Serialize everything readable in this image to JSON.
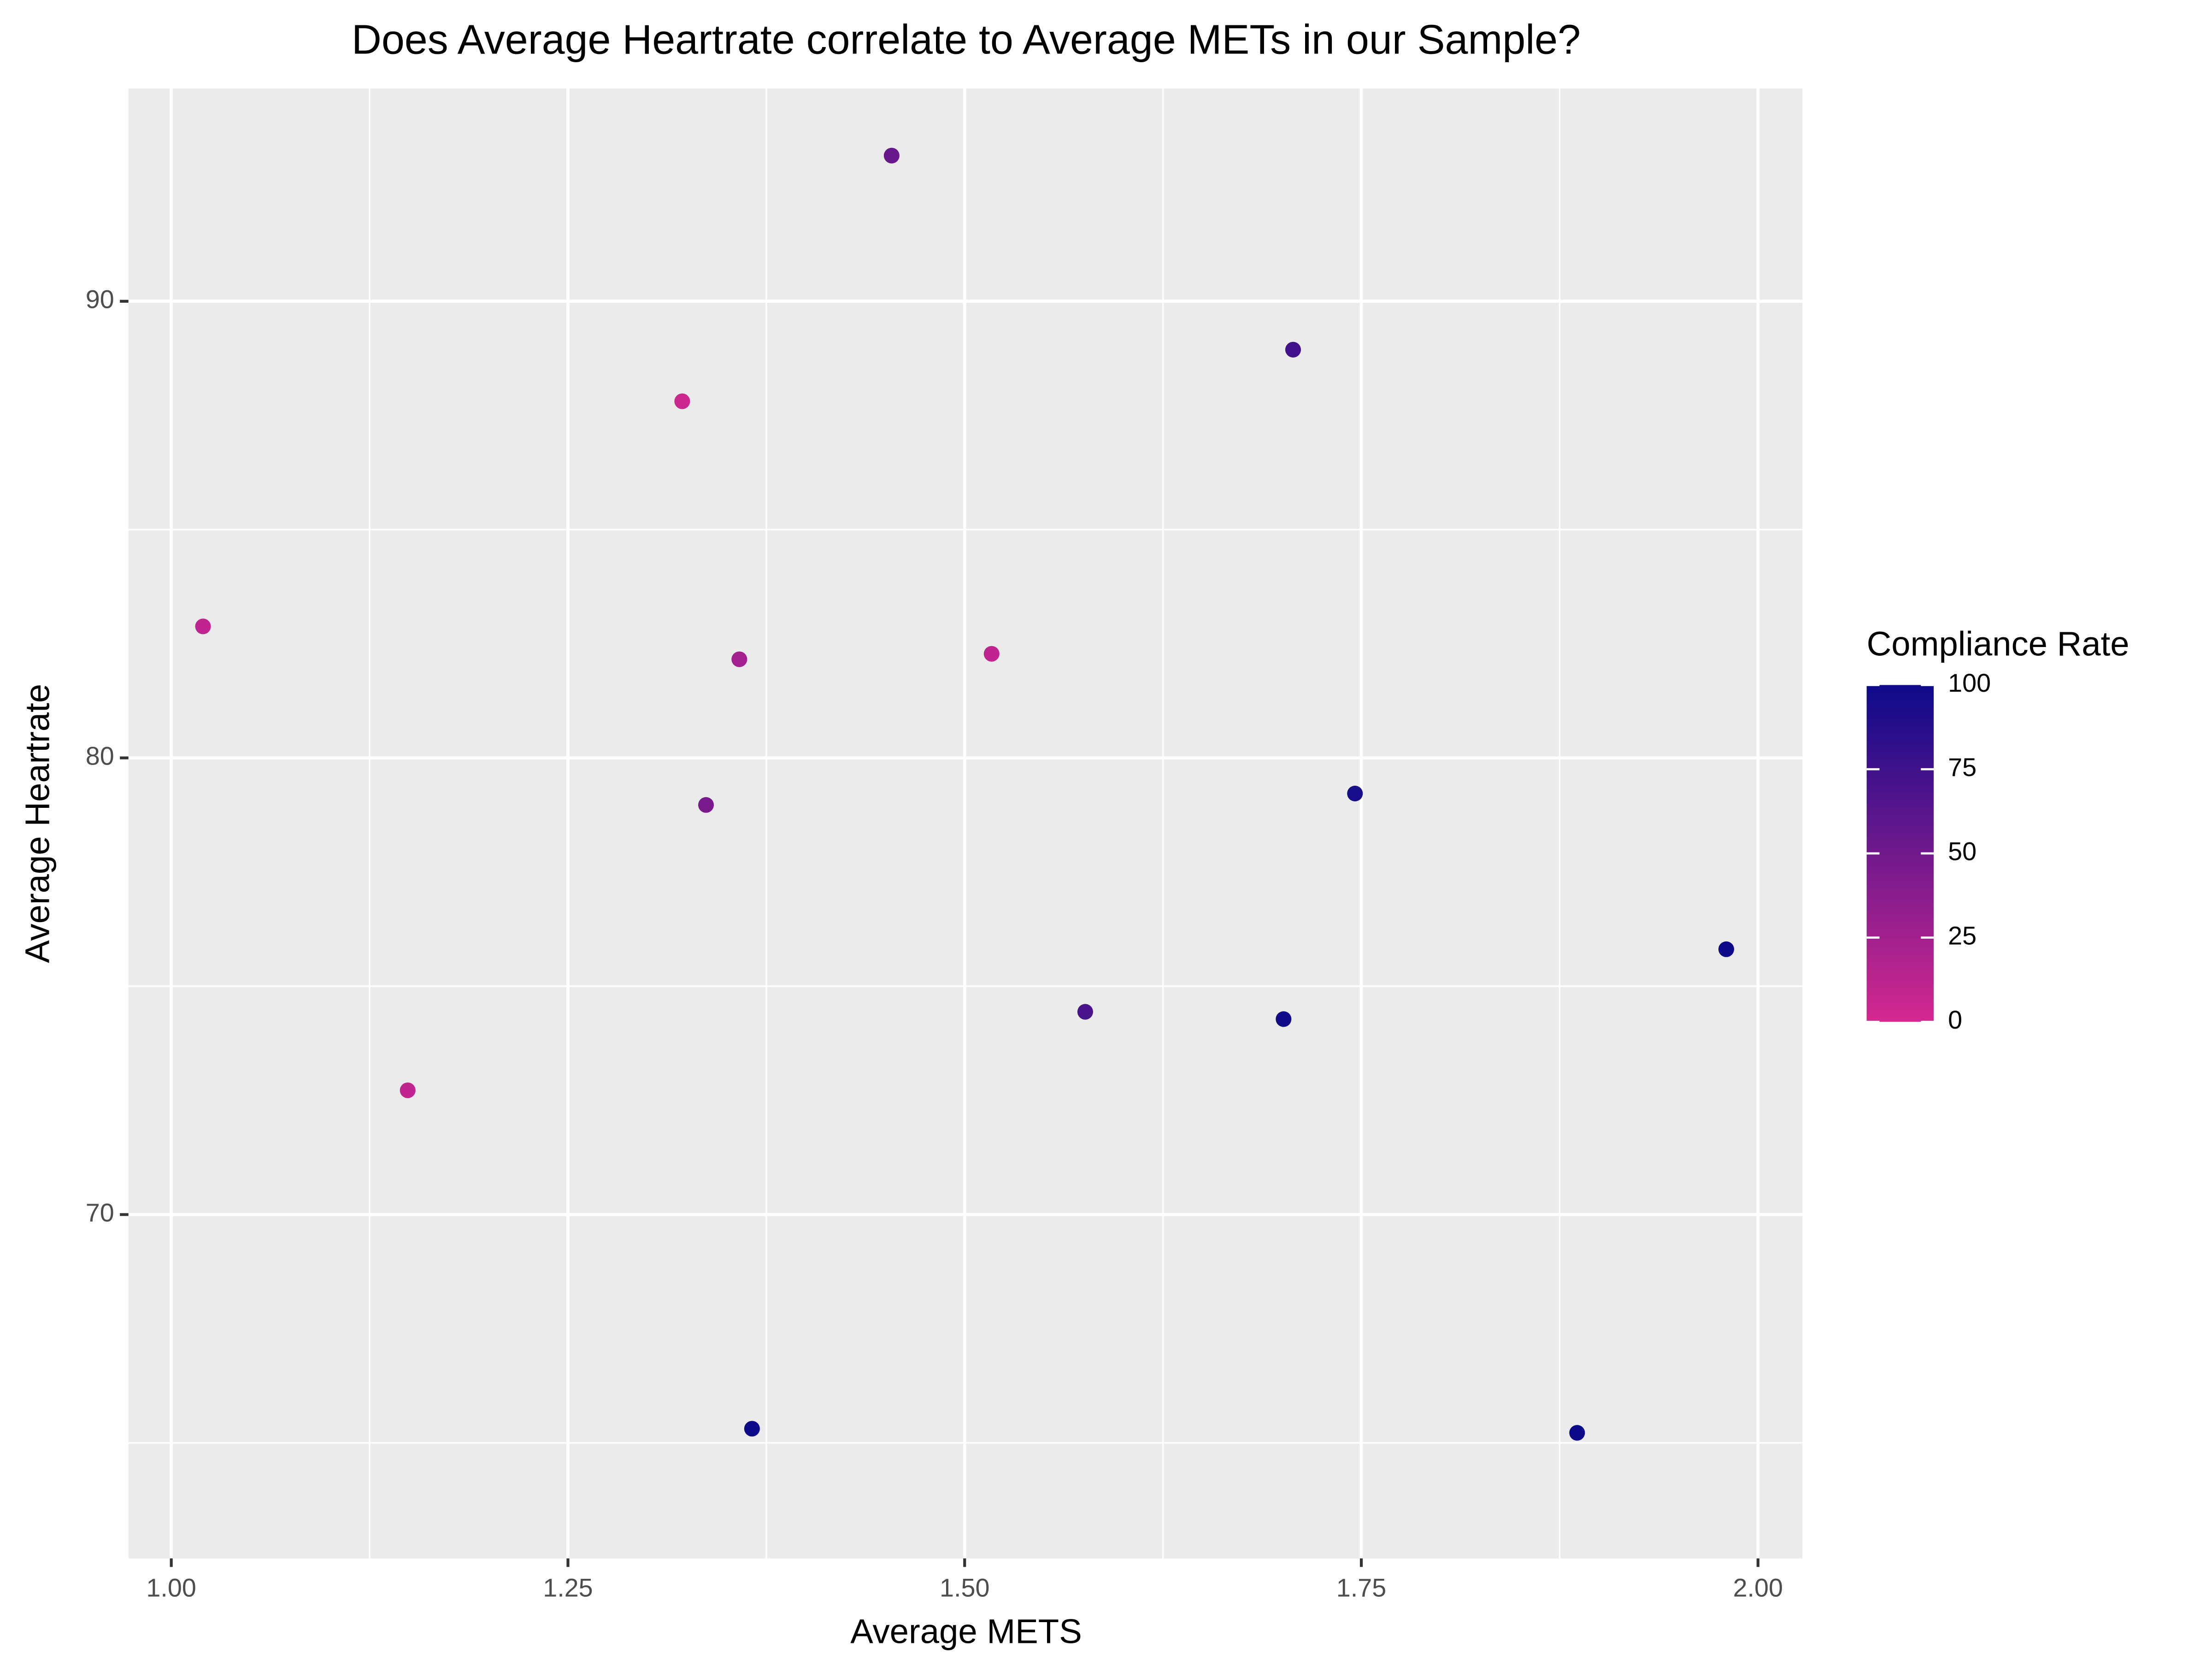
{
  "chart_data": {
    "type": "scatter",
    "title": "Does Average Heartrate correlate to Average METs in our Sample?",
    "x_label": "Average METS",
    "y_label": "Average Heartrate",
    "x": [
      1.02,
      1.149,
      1.322,
      1.337,
      1.358,
      1.366,
      1.454,
      1.517,
      1.576,
      1.701,
      1.707,
      1.746,
      1.886,
      1.98
    ],
    "y": [
      82.88,
      72.72,
      87.81,
      78.97,
      82.16,
      65.31,
      93.19,
      82.28,
      74.44,
      74.28,
      88.94,
      79.22,
      65.22,
      75.81
    ],
    "color_values": [
      10,
      10,
      5,
      45,
      25,
      100,
      55,
      10,
      70,
      98,
      75,
      95,
      100,
      100
    ],
    "color_title": "Compliance Rate",
    "color_low": "#d4288f",
    "color_high": "#0d0a8a",
    "color_lim": [
      0,
      100
    ],
    "color_ticks": [
      0,
      25,
      50,
      75,
      100
    ],
    "xlim": [
      0.973,
      2.028
    ],
    "xticks": [
      {
        "value": 1,
        "label": "1.00"
      },
      {
        "value": 1.25,
        "label": "1.25"
      },
      {
        "value": 1.5,
        "label": "1.50"
      },
      {
        "value": 1.75,
        "label": "1.75"
      },
      {
        "value": 2,
        "label": "2.00"
      }
    ],
    "ylim": [
      62.47,
      94.66
    ],
    "yticks": [
      70,
      80,
      90
    ],
    "grid": true
  }
}
